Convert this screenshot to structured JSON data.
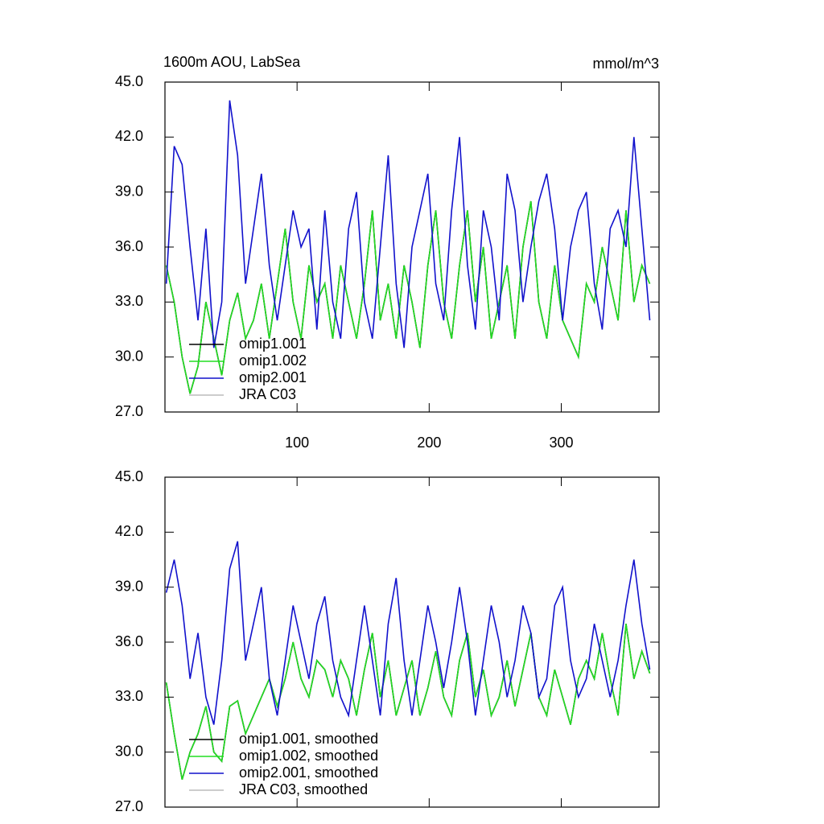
{
  "chart_data": [
    {
      "type": "line",
      "title": "1600m AOU, LabSea",
      "units": "mmol/m^3",
      "x": [
        1,
        7,
        13,
        19,
        25,
        31,
        37,
        43,
        49,
        55,
        61,
        67,
        73,
        79,
        85,
        91,
        97,
        103,
        109,
        115,
        121,
        127,
        133,
        139,
        145,
        151,
        157,
        163,
        169,
        175,
        181,
        187,
        193,
        199,
        205,
        211,
        217,
        223,
        229,
        235,
        241,
        247,
        253,
        259,
        265,
        271,
        277,
        283,
        289,
        295,
        301,
        307,
        313,
        319,
        325,
        331,
        337,
        343,
        349,
        355,
        361,
        367
      ],
      "xlim": [
        0,
        374
      ],
      "xticks": [
        100,
        200,
        300
      ],
      "xtick_labels": true,
      "ylim": [
        27,
        45
      ],
      "yticks": [
        {
          "value": 27,
          "label": "27.0"
        },
        {
          "value": 30,
          "label": "30.0"
        },
        {
          "value": 33,
          "label": "33.0"
        },
        {
          "value": 36,
          "label": "36.0"
        },
        {
          "value": 39,
          "label": "39.0"
        },
        {
          "value": 42,
          "label": "42.0"
        },
        {
          "value": 45,
          "label": "45.0"
        }
      ],
      "legend": "lower left",
      "series": [
        {
          "name": "omip1.001",
          "color": "#000000",
          "values": [
            35,
            33,
            30,
            28,
            29.5,
            33,
            31,
            29,
            32,
            33.5,
            31,
            32,
            34,
            31,
            34,
            37,
            33,
            31,
            35,
            33,
            34,
            31,
            35,
            33,
            31,
            34,
            38,
            32,
            34,
            31,
            35,
            33,
            30.5,
            35,
            38,
            33,
            31,
            35,
            38,
            33,
            36,
            31,
            33,
            35,
            31,
            36,
            38.5,
            33,
            31,
            35,
            32,
            31,
            30,
            34,
            33,
            36,
            34,
            32,
            38,
            33,
            35,
            34
          ]
        },
        {
          "name": "omip1.002",
          "color": "#22dd22",
          "values": [
            35,
            33,
            30,
            28,
            29.5,
            33,
            31,
            29,
            32,
            33.5,
            31,
            32,
            34,
            31,
            34,
            37,
            33,
            31,
            35,
            33,
            34,
            31,
            35,
            33,
            31,
            34,
            38,
            32,
            34,
            31,
            35,
            33,
            30.5,
            35,
            38,
            33,
            31,
            35,
            38,
            33,
            36,
            31,
            33,
            35,
            31,
            36,
            38.5,
            33,
            31,
            35,
            32,
            31,
            30,
            34,
            33,
            36,
            34,
            32,
            38,
            33,
            35,
            34
          ]
        },
        {
          "name": "omip2.001",
          "color": "#1111cc",
          "values": [
            34,
            41.5,
            40.5,
            36,
            32,
            37,
            30.5,
            33,
            44,
            41,
            34,
            37,
            40,
            35,
            32,
            35,
            38,
            36,
            37,
            31.5,
            38,
            33,
            31,
            37,
            39,
            33,
            31,
            36,
            41,
            34,
            30.5,
            36,
            38,
            40,
            34,
            32,
            38,
            42,
            35,
            31.5,
            38,
            36,
            32,
            40,
            38,
            33,
            36,
            38.5,
            40,
            37,
            32,
            36,
            38,
            39,
            34,
            31.5,
            37,
            38,
            36,
            42,
            37,
            32
          ]
        },
        {
          "name": "JRA C03",
          "color": "#bbbbbb",
          "values": [
            null,
            null,
            null,
            null,
            null,
            null,
            null,
            null,
            null,
            null,
            null,
            null,
            null,
            null,
            null,
            null,
            null,
            null,
            null,
            null,
            null,
            null,
            null,
            null,
            null,
            null,
            null,
            null,
            null,
            null,
            null,
            null,
            null,
            null,
            null,
            null,
            null,
            null,
            null,
            null,
            null,
            null,
            null,
            null,
            null,
            null,
            null,
            null,
            null,
            null,
            null,
            null,
            null,
            null,
            null,
            null,
            null,
            null,
            null,
            null,
            null,
            null
          ]
        }
      ]
    },
    {
      "type": "line",
      "x": [
        1,
        7,
        13,
        19,
        25,
        31,
        37,
        43,
        49,
        55,
        61,
        67,
        73,
        79,
        85,
        91,
        97,
        103,
        109,
        115,
        121,
        127,
        133,
        139,
        145,
        151,
        157,
        163,
        169,
        175,
        181,
        187,
        193,
        199,
        205,
        211,
        217,
        223,
        229,
        235,
        241,
        247,
        253,
        259,
        265,
        271,
        277,
        283,
        289,
        295,
        301,
        307,
        313,
        319,
        325,
        331,
        337,
        343,
        349,
        355,
        361,
        367
      ],
      "xlim": [
        0,
        374
      ],
      "xticks": [
        100,
        200,
        300
      ],
      "xtick_labels": false,
      "ylim": [
        27,
        45
      ],
      "yticks": [
        {
          "value": 27,
          "label": "27.0"
        },
        {
          "value": 30,
          "label": "30.0"
        },
        {
          "value": 33,
          "label": "33.0"
        },
        {
          "value": 36,
          "label": "36.0"
        },
        {
          "value": 39,
          "label": "39.0"
        },
        {
          "value": 42,
          "label": "42.0"
        },
        {
          "value": 45,
          "label": "45.0"
        }
      ],
      "legend": "lower left",
      "series": [
        {
          "name": "omip1.001, smoothed",
          "color": "#000000",
          "values": [
            33.8,
            31,
            28.5,
            30,
            31,
            32.5,
            30,
            29.5,
            32.5,
            32.8,
            31,
            32,
            33,
            34,
            32.5,
            34,
            36,
            34,
            33,
            35,
            34.5,
            33,
            35,
            34,
            32,
            34.5,
            36.5,
            33,
            35,
            32,
            33.5,
            35,
            32,
            33.5,
            35.5,
            33,
            32,
            35,
            36.5,
            33,
            34.5,
            32,
            33,
            35,
            32.5,
            34.5,
            36.5,
            33,
            32,
            34.5,
            33,
            31.5,
            34,
            35,
            34,
            36.5,
            34,
            32,
            37,
            34,
            35.5,
            34.3
          ]
        },
        {
          "name": "omip1.002, smoothed",
          "color": "#22dd22",
          "values": [
            33.8,
            31,
            28.5,
            30,
            31,
            32.5,
            30,
            29.5,
            32.5,
            32.8,
            31,
            32,
            33,
            34,
            32.5,
            34,
            36,
            34,
            33,
            35,
            34.5,
            33,
            35,
            34,
            32,
            34.5,
            36.5,
            33,
            35,
            32,
            33.5,
            35,
            32,
            33.5,
            35.5,
            33,
            32,
            35,
            36.5,
            33,
            34.5,
            32,
            33,
            35,
            32.5,
            34.5,
            36.5,
            33,
            32,
            34.5,
            33,
            31.5,
            34,
            35,
            34,
            36.5,
            34,
            32,
            37,
            34,
            35.5,
            34.3
          ]
        },
        {
          "name": "omip2.001, smoothed",
          "color": "#1111cc",
          "values": [
            38.7,
            40.5,
            38,
            34,
            36.5,
            33,
            31.5,
            35,
            40,
            41.5,
            35,
            37,
            39,
            34,
            32,
            35,
            38,
            36,
            34,
            37,
            38.5,
            35,
            33,
            32,
            35,
            38,
            35,
            32,
            37,
            39.5,
            35,
            32,
            35,
            38,
            36,
            33.5,
            36,
            39,
            36,
            32,
            35,
            38,
            36,
            33,
            35,
            38,
            36.5,
            33,
            34,
            38,
            39,
            35,
            33,
            34,
            37,
            35,
            33,
            35,
            38,
            40.5,
            37,
            34.5
          ]
        },
        {
          "name": "JRA C03, smoothed",
          "color": "#bbbbbb",
          "values": [
            null,
            null,
            null,
            null,
            null,
            null,
            null,
            null,
            null,
            null,
            null,
            null,
            null,
            null,
            null,
            null,
            null,
            null,
            null,
            null,
            null,
            null,
            null,
            null,
            null,
            null,
            null,
            null,
            null,
            null,
            null,
            null,
            null,
            null,
            null,
            null,
            null,
            null,
            null,
            null,
            null,
            null,
            null,
            null,
            null,
            null,
            null,
            null,
            null,
            null,
            null,
            null,
            null,
            null,
            null,
            null,
            null,
            null,
            null,
            null,
            null,
            null
          ]
        }
      ]
    }
  ]
}
